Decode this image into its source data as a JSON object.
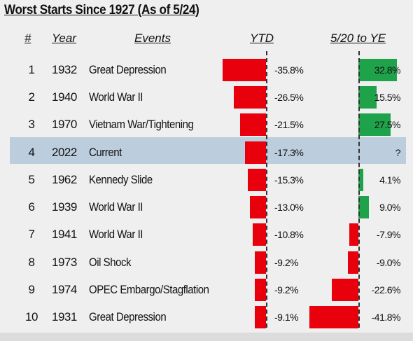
{
  "chart_data": {
    "type": "table",
    "title": "Worst Starts Since 1927 (As of 5/24)",
    "columns": [
      "#",
      "Year",
      "Events",
      "YTD",
      "5/20 to YE"
    ],
    "colors": {
      "negative": "#e8000c",
      "positive": "#1fa34a",
      "highlight": "#bccddd"
    },
    "rows": [
      {
        "rank": "1",
        "year": "1932",
        "event": "Great Depression",
        "ytd": -35.8,
        "ytd_label": "-35.8%",
        "rest": 32.8,
        "rest_label": "32.8%"
      },
      {
        "rank": "2",
        "year": "1940",
        "event": "World War II",
        "ytd": -26.5,
        "ytd_label": "-26.5%",
        "rest": 15.5,
        "rest_label": "15.5%"
      },
      {
        "rank": "3",
        "year": "1970",
        "event": "Vietnam War/Tightening",
        "ytd": -21.5,
        "ytd_label": "-21.5%",
        "rest": 27.5,
        "rest_label": "27.5%"
      },
      {
        "rank": "4",
        "year": "2022",
        "event": "Current",
        "ytd": -17.3,
        "ytd_label": "-17.3%",
        "rest": null,
        "rest_label": "?"
      },
      {
        "rank": "5",
        "year": "1962",
        "event": "Kennedy Slide",
        "ytd": -15.3,
        "ytd_label": "-15.3%",
        "rest": 4.1,
        "rest_label": "4.1%"
      },
      {
        "rank": "6",
        "year": "1939",
        "event": "World War II",
        "ytd": -13.0,
        "ytd_label": "-13.0%",
        "rest": 9.0,
        "rest_label": "9.0%"
      },
      {
        "rank": "7",
        "year": "1941",
        "event": "World War II",
        "ytd": -10.8,
        "ytd_label": "-10.8%",
        "rest": -7.9,
        "rest_label": "-7.9%"
      },
      {
        "rank": "8",
        "year": "1973",
        "event": "Oil Shock",
        "ytd": -9.2,
        "ytd_label": "-9.2%",
        "rest": -9.0,
        "rest_label": "-9.0%"
      },
      {
        "rank": "9",
        "year": "1974",
        "event": "OPEC Embargo/Stagflation",
        "ytd": -9.2,
        "ytd_label": "-9.2%",
        "rest": -22.6,
        "rest_label": "-22.6%"
      },
      {
        "rank": "10",
        "year": "1931",
        "event": "Great Depression",
        "ytd": -9.1,
        "ytd_label": "-9.1%",
        "rest": -41.8,
        "rest_label": "-41.8%"
      }
    ]
  }
}
